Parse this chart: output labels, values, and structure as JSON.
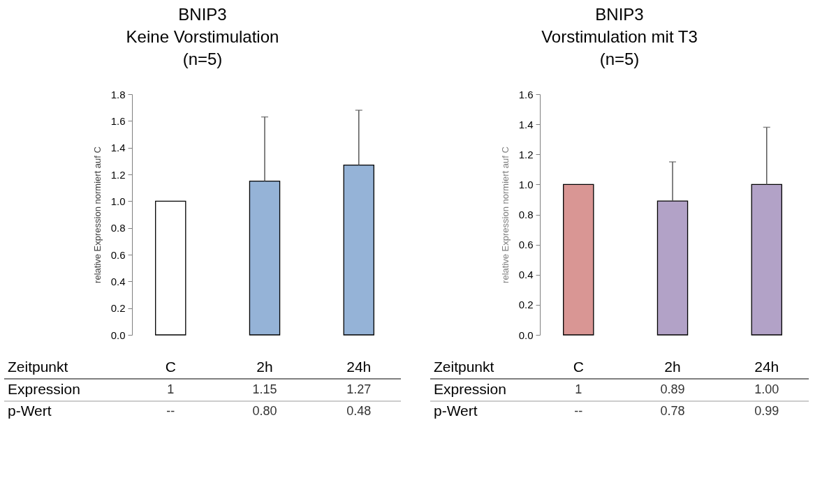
{
  "chart_data": [
    {
      "type": "bar",
      "title": "BNIP3\nKeine Vorstimulation\n(n=5)",
      "ylabel": "relative Expression normiert auf C",
      "xlabel": "Zeitpunkt",
      "categories": [
        "C",
        "2h",
        "24h"
      ],
      "series": [
        {
          "name": "Expression",
          "colors": [
            "#ffffff",
            "#95b3d7",
            "#95b3d7"
          ],
          "values": [
            1,
            1.15,
            1.27
          ],
          "value_labels": [
            "1",
            "1.15",
            "1.27"
          ],
          "errors": [
            null,
            [
              1.15,
              1.63
            ],
            [
              1.27,
              1.68
            ]
          ]
        }
      ],
      "annotations": [
        "p-Wert",
        "--",
        "0.80",
        "0.48"
      ],
      "ylim": [
        0,
        1.8
      ],
      "yticks": [
        {
          "value": 0,
          "label": "0.0"
        },
        {
          "value": 0.2,
          "label": "0.2"
        },
        {
          "value": 0.4,
          "label": "0.4"
        },
        {
          "value": 0.6,
          "label": "0.6"
        },
        {
          "value": 0.8,
          "label": "0.8"
        },
        {
          "value": 1,
          "label": "1.0"
        },
        {
          "value": 1.2,
          "label": "1.2"
        },
        {
          "value": 1.4,
          "label": "1.4"
        },
        {
          "value": 1.6,
          "label": "1.6"
        },
        {
          "value": 1.8,
          "label": "1.8"
        }
      ],
      "grid": false
    },
    {
      "type": "bar",
      "title": "BNIP3\nVorstimulation mit T3\n(n=5)",
      "ylabel": "relative Expression normiert auf C",
      "xlabel": "Zeitpunkt",
      "categories": [
        "C",
        "2h",
        "24h"
      ],
      "series": [
        {
          "name": "Expression",
          "colors": [
            "#d99694",
            "#b2a2c7",
            "#b2a2c7"
          ],
          "values": [
            1,
            0.89,
            1.0
          ],
          "value_labels": [
            "1",
            "0.89",
            "1.00"
          ],
          "errors": [
            null,
            [
              0.89,
              1.15
            ],
            [
              1.0,
              1.38
            ]
          ]
        }
      ],
      "annotations": [
        "p-Wert",
        "--",
        "0.78",
        "0.99"
      ],
      "ylim": [
        0,
        1.6
      ],
      "yticks": [
        {
          "value": 0,
          "label": "0.0"
        },
        {
          "value": 0.2,
          "label": "0.2"
        },
        {
          "value": 0.4,
          "label": "0.4"
        },
        {
          "value": 0.6,
          "label": "0.6"
        },
        {
          "value": 0.8,
          "label": "0.8"
        },
        {
          "value": 1,
          "label": "1.0"
        },
        {
          "value": 1.2,
          "label": "1.2"
        },
        {
          "value": 1.4,
          "label": "1.4"
        },
        {
          "value": 1.6,
          "label": "1.6"
        }
      ],
      "grid": false
    }
  ]
}
